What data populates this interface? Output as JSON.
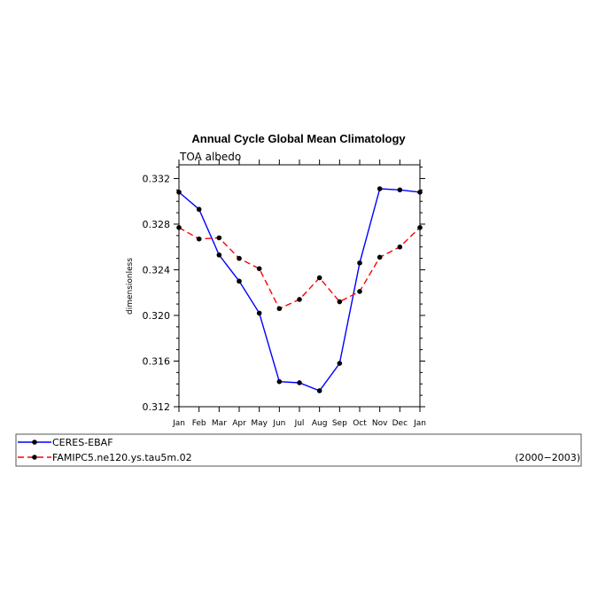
{
  "chart_data": {
    "type": "line",
    "title": "Annual Cycle Global Mean Climatology",
    "subtitle": "TOA albedo",
    "xlabel": "",
    "ylabel": "dimensionless",
    "categories": [
      "Jan",
      "Feb",
      "Mar",
      "Apr",
      "May",
      "Jun",
      "Jul",
      "Aug",
      "Sep",
      "Oct",
      "Nov",
      "Dec",
      "Jan"
    ],
    "ylim": [
      0.312,
      0.3332
    ],
    "yticks": [
      "0.312",
      "0.316",
      "0.320",
      "0.324",
      "0.328",
      "0.332"
    ],
    "grid": false,
    "legend_placement": "bottom",
    "series": [
      {
        "name": "CERES-EBAF",
        "color": "#0000ff",
        "dash": "solid",
        "marker": "filled-circle",
        "values": [
          0.3308,
          0.3293,
          0.3253,
          0.323,
          0.3202,
          0.3142,
          0.3141,
          0.3134,
          0.3158,
          0.3246,
          0.3311,
          0.331,
          0.3308
        ]
      },
      {
        "name": "FAMIPC5.ne120.ys.tau5m.02",
        "color": "#ff0000",
        "dash": "dashed",
        "marker": "filled-circle",
        "values": [
          0.3277,
          0.3267,
          0.3268,
          0.325,
          0.3241,
          0.3206,
          0.3214,
          0.3233,
          0.3212,
          0.3221,
          0.3251,
          0.326,
          0.3277
        ]
      }
    ],
    "legend_note": "(2000−2003)"
  }
}
